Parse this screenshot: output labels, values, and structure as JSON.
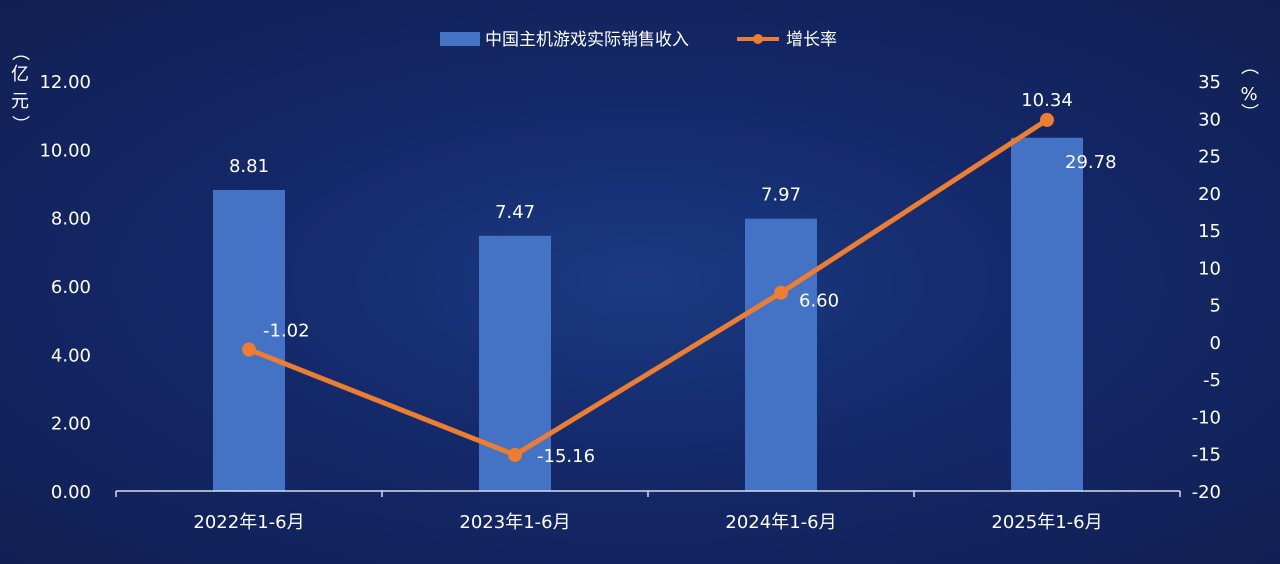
{
  "chart_data": {
    "type": "bar",
    "categories": [
      "2022年1-6月",
      "2023年1-6月",
      "2024年1-6月",
      "2025年1-6月"
    ],
    "series": [
      {
        "name": "中国主机游戏实际销售收入",
        "type": "bar",
        "axis": "left",
        "values": [
          8.81,
          7.47,
          7.97,
          10.34
        ],
        "labels": [
          "8.81",
          "7.47",
          "7.97",
          "10.34"
        ],
        "color": "#4472c4"
      },
      {
        "name": "增长率",
        "type": "line",
        "axis": "right",
        "values": [
          -1.02,
          -15.16,
          6.6,
          29.78
        ],
        "labels": [
          "-1.02",
          "-15.16",
          "6.60",
          "29.78"
        ],
        "color": "#ed7d31"
      }
    ],
    "y_left": {
      "unit_chars": [
        "（",
        "亿",
        "元",
        "）"
      ],
      "range": [
        0,
        12
      ],
      "ticks": [
        "0.00",
        "2.00",
        "4.00",
        "6.00",
        "8.00",
        "10.00",
        "12.00"
      ]
    },
    "y_right": {
      "unit_chars": [
        "（",
        "%",
        "）"
      ],
      "range": [
        -20,
        35
      ],
      "ticks": [
        "-20",
        "-15",
        "-10",
        "-5",
        "0",
        "5",
        "10",
        "15",
        "20",
        "25",
        "30",
        "35"
      ]
    },
    "legend_position": "top-center",
    "grid": false
  },
  "colors": {
    "text": "#ffffff",
    "axis": "#d9dbe8"
  }
}
